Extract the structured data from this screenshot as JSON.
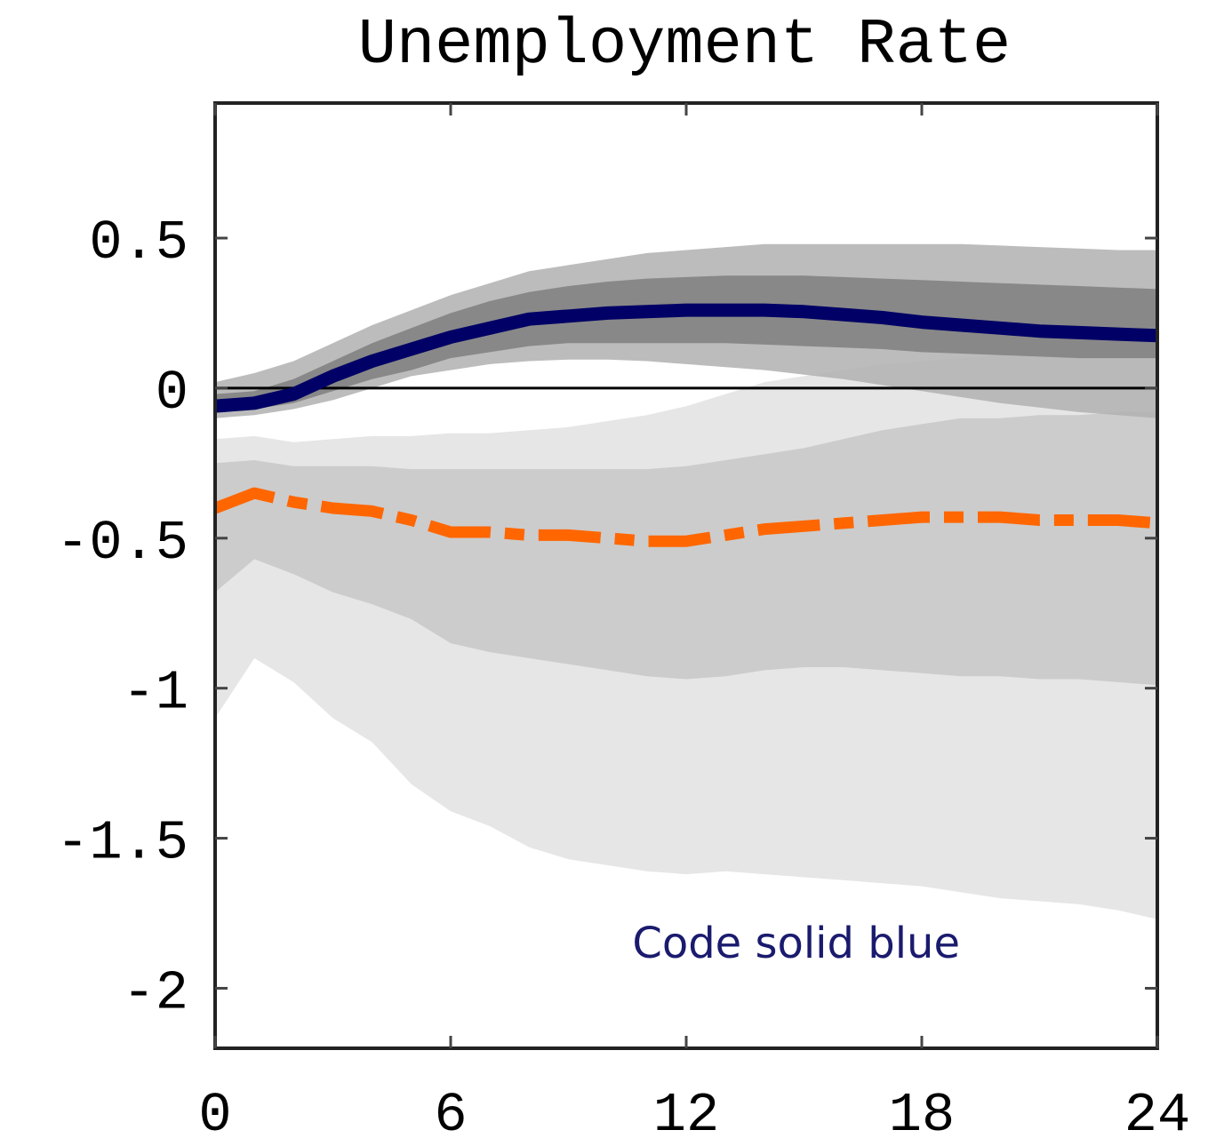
{
  "chart_data": {
    "type": "line",
    "title": "Unemployment Rate",
    "xlabel": "",
    "ylabel": "",
    "xlim": [
      0,
      24
    ],
    "ylim": [
      -2.2,
      0.95
    ],
    "xticks": [
      0,
      6,
      12,
      18,
      24
    ],
    "xtick_labels": [
      "0",
      "6",
      "12",
      "18",
      "24"
    ],
    "yticks": [
      0.5,
      0,
      -0.5,
      -1,
      -1.5,
      -2
    ],
    "ytick_labels": [
      "0.5",
      "0",
      "-0.5",
      "-1",
      "-1.5",
      "-2"
    ],
    "zero_line": 0,
    "grid": false,
    "x": [
      0,
      1,
      2,
      3,
      4,
      5,
      6,
      7,
      8,
      9,
      10,
      11,
      12,
      13,
      14,
      15,
      16,
      17,
      18,
      19,
      20,
      21,
      22,
      23,
      24
    ],
    "series": [
      {
        "style": "solid",
        "color": "#000066",
        "values": [
          -0.06,
          -0.05,
          -0.02,
          0.04,
          0.09,
          0.13,
          0.17,
          0.2,
          0.23,
          0.24,
          0.25,
          0.255,
          0.26,
          0.26,
          0.26,
          0.255,
          0.245,
          0.235,
          0.22,
          0.21,
          0.2,
          0.19,
          0.185,
          0.18,
          0.175
        ],
        "bands": [
          {
            "level": "outer",
            "color": "#b0b0b0",
            "upper": [
              0.02,
              0.05,
              0.09,
              0.15,
              0.21,
              0.26,
              0.31,
              0.35,
              0.39,
              0.41,
              0.43,
              0.45,
              0.46,
              0.47,
              0.48,
              0.48,
              0.48,
              0.48,
              0.48,
              0.48,
              0.475,
              0.47,
              0.465,
              0.46,
              0.46
            ],
            "lower": [
              -0.1,
              -0.09,
              -0.07,
              -0.04,
              0.0,
              0.04,
              0.06,
              0.08,
              0.09,
              0.095,
              0.095,
              0.09,
              0.08,
              0.07,
              0.06,
              0.045,
              0.03,
              0.01,
              -0.01,
              -0.03,
              -0.05,
              -0.065,
              -0.08,
              -0.09,
              -0.1
            ]
          },
          {
            "level": "inner",
            "color": "#7f7f7f",
            "upper": [
              -0.02,
              -0.01,
              0.03,
              0.09,
              0.15,
              0.2,
              0.25,
              0.29,
              0.32,
              0.34,
              0.355,
              0.365,
              0.37,
              0.375,
              0.375,
              0.375,
              0.37,
              0.365,
              0.36,
              0.355,
              0.35,
              0.345,
              0.34,
              0.335,
              0.33
            ],
            "lower": [
              -0.08,
              -0.07,
              -0.05,
              -0.01,
              0.03,
              0.06,
              0.1,
              0.12,
              0.14,
              0.15,
              0.15,
              0.15,
              0.15,
              0.15,
              0.145,
              0.14,
              0.135,
              0.13,
              0.12,
              0.115,
              0.11,
              0.105,
              0.1,
              0.1,
              0.1
            ]
          }
        ]
      },
      {
        "style": "dash-dot",
        "color": "#ff6600",
        "values": [
          -0.4,
          -0.35,
          -0.38,
          -0.4,
          -0.41,
          -0.44,
          -0.48,
          -0.48,
          -0.49,
          -0.49,
          -0.5,
          -0.51,
          -0.51,
          -0.49,
          -0.47,
          -0.46,
          -0.45,
          -0.44,
          -0.43,
          -0.43,
          -0.43,
          -0.44,
          -0.44,
          -0.44,
          -0.45
        ],
        "bands": [
          {
            "level": "outer",
            "color": "#e6e6e6",
            "upper": [
              -0.17,
              -0.16,
              -0.18,
              -0.17,
              -0.16,
              -0.16,
              -0.15,
              -0.15,
              -0.14,
              -0.13,
              -0.11,
              -0.09,
              -0.06,
              -0.02,
              0.02,
              0.04,
              0.06,
              0.08,
              0.09,
              0.1,
              0.11,
              0.12,
              0.13,
              0.14,
              0.15
            ],
            "lower": [
              -1.1,
              -0.9,
              -0.98,
              -1.1,
              -1.18,
              -1.32,
              -1.41,
              -1.46,
              -1.53,
              -1.57,
              -1.59,
              -1.61,
              -1.62,
              -1.61,
              -1.62,
              -1.63,
              -1.64,
              -1.65,
              -1.66,
              -1.68,
              -1.7,
              -1.71,
              -1.72,
              -1.74,
              -1.77
            ]
          },
          {
            "level": "inner",
            "color": "#cccccc",
            "upper": [
              -0.25,
              -0.24,
              -0.26,
              -0.26,
              -0.26,
              -0.27,
              -0.27,
              -0.27,
              -0.27,
              -0.27,
              -0.27,
              -0.27,
              -0.26,
              -0.24,
              -0.22,
              -0.2,
              -0.17,
              -0.14,
              -0.12,
              -0.1,
              -0.1,
              -0.09,
              -0.09,
              -0.08,
              -0.08
            ],
            "lower": [
              -0.68,
              -0.57,
              -0.62,
              -0.68,
              -0.72,
              -0.77,
              -0.85,
              -0.88,
              -0.9,
              -0.92,
              -0.94,
              -0.96,
              -0.97,
              -0.96,
              -0.94,
              -0.93,
              -0.93,
              -0.94,
              -0.95,
              -0.96,
              -0.96,
              -0.97,
              -0.97,
              -0.98,
              -0.99
            ]
          }
        ]
      }
    ],
    "annotations": [
      {
        "text": "Code solid blue",
        "x": 14.8,
        "y": -1.85,
        "color": "#1a1a6e"
      }
    ]
  }
}
